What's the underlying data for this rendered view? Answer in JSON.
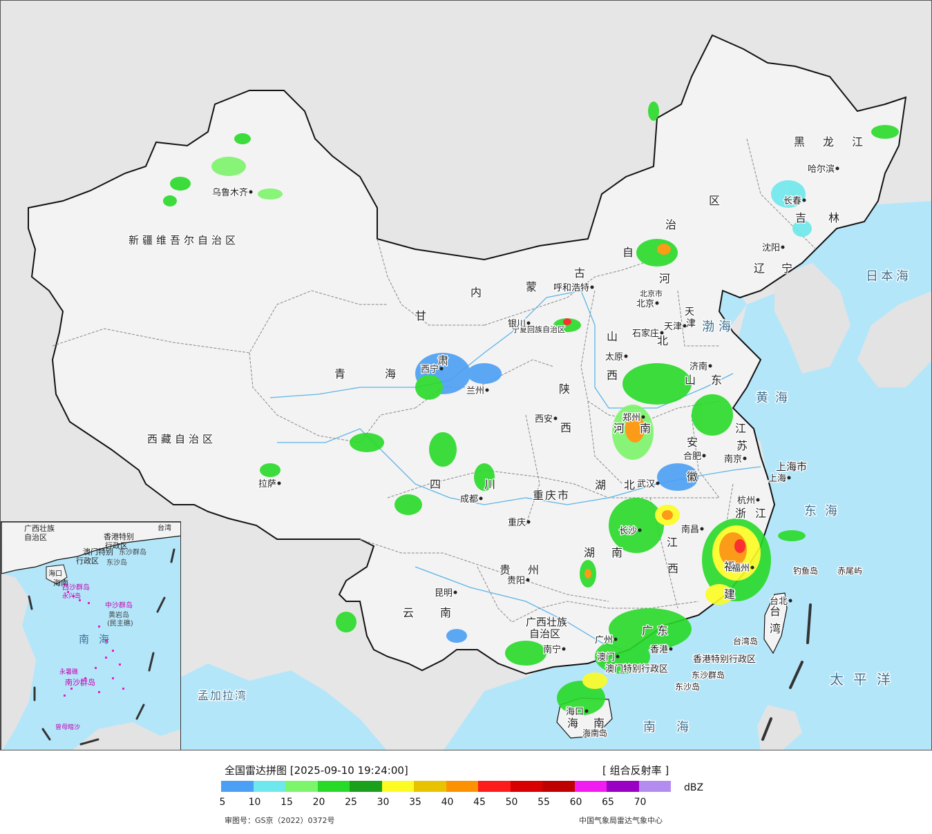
{
  "colors": {
    "ocean": "#b4e6fa",
    "land_outside": "#e3e3e3",
    "china_land": "#f3f3f3",
    "border": "#111111",
    "province_border": "#888888",
    "river": "#5cb4e6",
    "label": "#222222",
    "sea_label": "#3a6f90"
  },
  "provinces": [
    {
      "name": "新疆维吾尔自治区"
    },
    {
      "name": "西藏自治区"
    },
    {
      "name": "青"
    },
    {
      "name": "海"
    },
    {
      "name": "甘"
    },
    {
      "name": "肃"
    },
    {
      "name": "内"
    },
    {
      "name": "蒙"
    },
    {
      "name": "古"
    },
    {
      "name": "自"
    },
    {
      "name": "治"
    },
    {
      "name": "区"
    },
    {
      "name": "黑"
    },
    {
      "name": "龙"
    },
    {
      "name": "江"
    },
    {
      "name": "吉"
    },
    {
      "name": "林"
    },
    {
      "name": "辽"
    },
    {
      "name": "宁"
    },
    {
      "name": "河"
    },
    {
      "name": "北"
    },
    {
      "name": "山"
    },
    {
      "name": "西"
    },
    {
      "name": "山"
    },
    {
      "name": "东"
    },
    {
      "name": "陕"
    },
    {
      "name": "西"
    },
    {
      "name": "河"
    },
    {
      "name": "南"
    },
    {
      "name": "安"
    },
    {
      "name": "徽"
    },
    {
      "name": "江"
    },
    {
      "name": "苏"
    },
    {
      "name": "浙"
    },
    {
      "name": "江"
    },
    {
      "name": "湖"
    },
    {
      "name": "北"
    },
    {
      "name": "湖"
    },
    {
      "name": "南"
    },
    {
      "name": "江"
    },
    {
      "name": "西"
    },
    {
      "name": "四"
    },
    {
      "name": "川"
    },
    {
      "name": "重庆市"
    },
    {
      "name": "贵"
    },
    {
      "name": "州"
    },
    {
      "name": "云"
    },
    {
      "name": "南"
    },
    {
      "name": "广西壮族"
    },
    {
      "name": "自治区"
    },
    {
      "name": "广"
    },
    {
      "name": "东"
    },
    {
      "name": "福"
    },
    {
      "name": "建"
    },
    {
      "name": "海"
    },
    {
      "name": "南"
    },
    {
      "name": "台"
    },
    {
      "name": "湾"
    },
    {
      "name": "上海市"
    },
    {
      "name": "天"
    },
    {
      "name": "津"
    },
    {
      "name": "北京市"
    },
    {
      "name": "宁夏回族自治区"
    },
    {
      "name": "香港特别行政区"
    },
    {
      "name": "澳门特别行政区"
    }
  ],
  "cities": [
    {
      "name": "乌鲁木齐"
    },
    {
      "name": "拉萨"
    },
    {
      "name": "西宁"
    },
    {
      "name": "兰州"
    },
    {
      "name": "银川"
    },
    {
      "name": "呼和浩特"
    },
    {
      "name": "北京"
    },
    {
      "name": "天津"
    },
    {
      "name": "石家庄"
    },
    {
      "name": "太原"
    },
    {
      "name": "济南"
    },
    {
      "name": "郑州"
    },
    {
      "name": "西安"
    },
    {
      "name": "合肥"
    },
    {
      "name": "南京"
    },
    {
      "name": "上海"
    },
    {
      "name": "杭州"
    },
    {
      "name": "武汉"
    },
    {
      "name": "长沙"
    },
    {
      "name": "南昌"
    },
    {
      "name": "福州"
    },
    {
      "name": "台北"
    },
    {
      "name": "成都"
    },
    {
      "name": "重庆"
    },
    {
      "name": "贵阳"
    },
    {
      "name": "昆明"
    },
    {
      "name": "南宁"
    },
    {
      "name": "广州"
    },
    {
      "name": "香港"
    },
    {
      "name": "澳门"
    },
    {
      "name": "海口"
    },
    {
      "name": "哈尔滨"
    },
    {
      "name": "长春"
    },
    {
      "name": "沈阳"
    }
  ],
  "seas": [
    {
      "name": "日本海"
    },
    {
      "name": "渤海"
    },
    {
      "name": "黄海"
    },
    {
      "name": "东海"
    },
    {
      "name": "太平洋"
    },
    {
      "name": "南海"
    },
    {
      "name": "孟加拉湾"
    }
  ],
  "islands": [
    {
      "name": "钓鱼岛"
    },
    {
      "name": "赤尾屿"
    },
    {
      "name": "台湾岛"
    },
    {
      "name": "东沙群岛"
    },
    {
      "name": "东沙岛"
    },
    {
      "name": "海南岛"
    }
  ],
  "inset": {
    "sea": "南海",
    "labels": [
      "广西壮族",
      "自治区",
      "香港特别",
      "行政区",
      "澳门特别",
      "行政区",
      "东沙群岛",
      "东沙岛",
      "海口",
      "海南",
      "西沙群岛",
      "永兴岛",
      "中沙群岛",
      "黄岩岛",
      "(民主礁)",
      "永暑礁",
      "南沙群岛",
      "曾母暗沙",
      "台湾"
    ]
  },
  "legend": {
    "title": "全国雷达拼图 [2025-09-10 19:24:00]",
    "product": "[ 组合反射率 ]",
    "unit": "dBZ",
    "colors": [
      "#4b9ff5",
      "#6ee8ec",
      "#7cf56a",
      "#28da28",
      "#1aa01a",
      "#fcfc22",
      "#e8c400",
      "#fc9200",
      "#fc1c1c",
      "#d80000",
      "#c00000",
      "#f01cf0",
      "#9a00c4",
      "#b48cf0"
    ],
    "ticks": [
      "5",
      "10",
      "15",
      "20",
      "25",
      "30",
      "35",
      "40",
      "45",
      "50",
      "55",
      "60",
      "65",
      "70"
    ],
    "review_no": "审图号：GS京（2022）0372号",
    "credit": "中国气象局雷达气象中心"
  }
}
